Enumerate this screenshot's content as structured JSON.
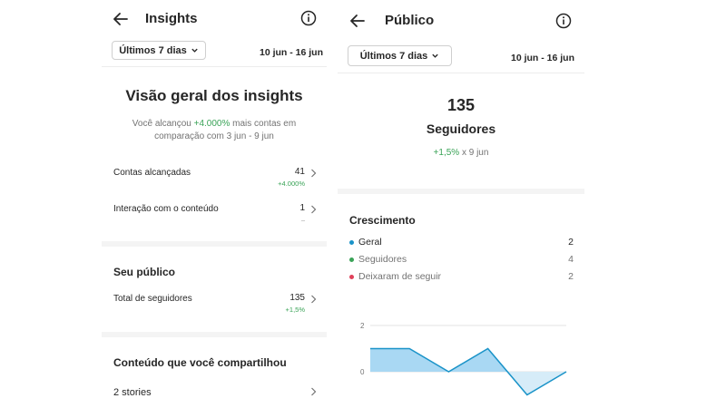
{
  "left": {
    "header": {
      "title": "Insights"
    },
    "range_button": "Últimos 7 dias",
    "date_range": "10 jun - 16 jun",
    "overview": {
      "title": "Visão geral dos insights",
      "desc_prefix": "Você alcançou ",
      "desc_highlight": "+4.000%",
      "desc_suffix": " mais contas em comparação com 3 jun - 9 jun"
    },
    "metrics": [
      {
        "label": "Contas alcançadas",
        "value": "41",
        "sub": "+4.000%"
      },
      {
        "label": "Interação com o conteúdo",
        "value": "1",
        "sub": "–"
      }
    ],
    "audience": {
      "title": "Seu público",
      "row": {
        "label": "Total de seguidores",
        "value": "135",
        "sub": "+1,5%"
      }
    },
    "shared": {
      "title": "Conteúdo que você compartilhou",
      "stories": "2 stories"
    }
  },
  "right": {
    "header": {
      "title": "Público"
    },
    "range_button": "Últimos 7 dias",
    "date_range": "10 jun - 16 jun",
    "followers": {
      "count": "135",
      "label": "Seguidores",
      "change": "+1,5%",
      "change_suffix": " x 9 jun"
    },
    "growth": {
      "title": "Crescimento",
      "legend": [
        {
          "name": "Geral",
          "value": "2",
          "color": "#1a93c8"
        },
        {
          "name": "Seguidores",
          "value": "4",
          "color": "#3aa357"
        },
        {
          "name": "Deixaram de seguir",
          "value": "2",
          "color": "#e0405a"
        }
      ]
    }
  },
  "chart_data": {
    "type": "area",
    "x": [
      1,
      2,
      3,
      4,
      5,
      6
    ],
    "series": [
      {
        "values": [
          1,
          1,
          0,
          1,
          -1,
          0
        ]
      }
    ],
    "y_ticks": [
      "2",
      "0"
    ],
    "ylim": [
      -1.2,
      2
    ],
    "grid": true,
    "colors": {
      "line": "#1a93c8",
      "fill_positive": "#a9d8f3",
      "fill_negative": "#d6ecf8"
    }
  }
}
